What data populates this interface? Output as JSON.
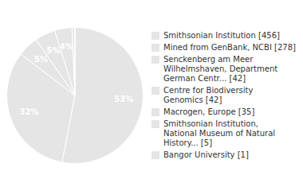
{
  "chart_data": {
    "type": "pie",
    "categories": [
      "Smithsonian Institution [456]",
      "Mined from GenBank, NCBI [278]",
      "Senckenberg am Meer\nWilhelmshaven, Department\nGerman Centr... [42]",
      "Centre for Biodiversity\nGenomics [42]",
      "Macrogen, Europe [35]",
      "Smithsonian Institution,\nNational Museum of Natural\nHistory... [5]",
      "Bangor University [1]"
    ],
    "values": [
      53.1,
      32.4,
      4.9,
      4.9,
      4.1,
      0.6,
      0.1
    ],
    "data_labels": true,
    "value_labels": [
      "53%",
      "32%",
      "5%",
      "5%",
      "4%",
      null,
      null
    ],
    "legend": "right"
  }
}
